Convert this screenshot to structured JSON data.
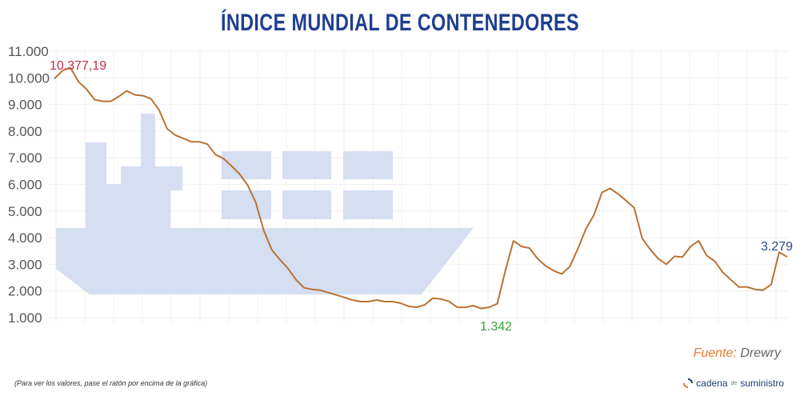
{
  "title": "ÍNDICE MUNDIAL DE CONTENEDORES",
  "source_label": "Fuente:",
  "source_name": "Drewry",
  "hint": "(Para ver los valores, pase el ratón por encima de la gráfica)",
  "brand": {
    "part1": "cadena",
    "part2": "de",
    "part3": "suministro",
    "icon": "circular-arrows-icon"
  },
  "colors": {
    "line": "#b87333",
    "title": "#1f3f8f",
    "max_label": "#c0304a",
    "min_label": "#3aa33a",
    "last_label": "#2a4a8a",
    "ship": "#d6def2"
  },
  "chart_data": {
    "type": "line",
    "title": "ÍNDICE MUNDIAL DE CONTENEDORES",
    "xlabel": "",
    "ylabel": "",
    "ylim": [
      1000,
      11000
    ],
    "yticks": [
      "1.000",
      "2.000",
      "3.000",
      "4.000",
      "5.000",
      "6.000",
      "7.000",
      "8.000",
      "9.000",
      "10.000",
      "11.000"
    ],
    "grid": true,
    "values": [
      9970,
      10270,
      10377,
      9850,
      9570,
      9180,
      9120,
      9120,
      9300,
      9510,
      9360,
      9330,
      9210,
      8790,
      8090,
      7850,
      7730,
      7600,
      7600,
      7510,
      7120,
      6970,
      6690,
      6390,
      5970,
      5330,
      4270,
      3540,
      3180,
      2850,
      2420,
      2120,
      2060,
      2030,
      1940,
      1850,
      1760,
      1660,
      1600,
      1600,
      1660,
      1600,
      1600,
      1540,
      1420,
      1390,
      1480,
      1730,
      1700,
      1610,
      1390,
      1380,
      1450,
      1342,
      1390,
      1520,
      2760,
      3880,
      3670,
      3610,
      3210,
      2940,
      2760,
      2640,
      2910,
      3580,
      4330,
      4850,
      5700,
      5850,
      5640,
      5390,
      5120,
      3970,
      3550,
      3210,
      3000,
      3300,
      3270,
      3670,
      3880,
      3330,
      3120,
      2700,
      2420,
      2150,
      2150,
      2060,
      2030,
      2240,
      3450,
      3279
    ],
    "annotations": {
      "max": {
        "text": "10.377,19",
        "value": 10377.19,
        "index": 2
      },
      "min": {
        "text": "1.342",
        "value": 1342,
        "index": 53
      },
      "last": {
        "text": "3.279",
        "value": 3279,
        "index": 91
      }
    }
  }
}
